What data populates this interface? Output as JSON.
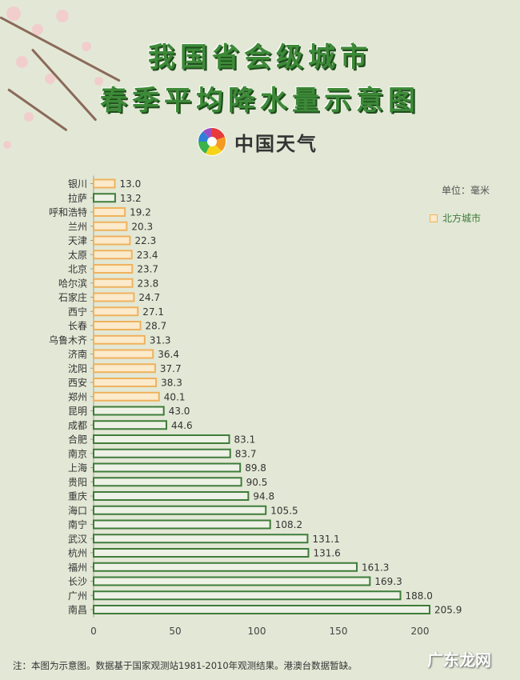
{
  "header": {
    "title_line1": "我国省会级城市",
    "title_line2": "春季平均降水量示意图",
    "brand": "中国天气",
    "brand_logo_icon": "pinwheel-logo-icon"
  },
  "note": "注：本图为示意图。数据基于国家观测站1981-2010年观测结果。港澳台数据暂缺。",
  "watermark": "广东龙网",
  "colors": {
    "background": "#e3e8d6",
    "north_stroke": "#efb25d",
    "north_fill": "#fbeacb",
    "south_stroke": "#3f7c3a",
    "south_fill": "#eef1e6",
    "title": "#3d8a38"
  },
  "chart_data": {
    "type": "bar",
    "orientation": "horizontal",
    "unit_label": "单位：毫米",
    "legend": [
      {
        "name": "北方城市",
        "color": "#efb25d"
      }
    ],
    "xlim": [
      0,
      210
    ],
    "xticks": [
      0,
      50,
      100,
      150,
      200
    ],
    "grid": false,
    "legend_position": "right",
    "categories": [
      "银川",
      "拉萨",
      "呼和浩特",
      "兰州",
      "天津",
      "太原",
      "北京",
      "哈尔滨",
      "石家庄",
      "西宁",
      "长春",
      "乌鲁木齐",
      "济南",
      "沈阳",
      "西安",
      "郑州",
      "昆明",
      "成都",
      "合肥",
      "南京",
      "上海",
      "贵阳",
      "重庆",
      "海口",
      "南宁",
      "武汉",
      "杭州",
      "福州",
      "长沙",
      "广州",
      "南昌"
    ],
    "values": [
      13.0,
      13.2,
      19.2,
      20.3,
      22.3,
      23.4,
      23.7,
      23.8,
      24.7,
      27.1,
      28.7,
      31.3,
      36.4,
      37.7,
      38.3,
      40.1,
      43.0,
      44.6,
      83.1,
      83.7,
      89.8,
      90.5,
      94.8,
      105.5,
      108.2,
      131.1,
      131.6,
      161.3,
      169.3,
      188.0,
      205.9
    ],
    "value_labels": [
      "13.0",
      "13.2",
      "19.2",
      "20.3",
      "22.3",
      "23.4",
      "23.7",
      "23.8",
      "24.7",
      "27.1",
      "28.7",
      "31.3",
      "36.4",
      "37.7",
      "38.3",
      "40.1",
      "43.0",
      "44.6",
      "83.1",
      "83.7",
      "89.8",
      "90.5",
      "94.8",
      "105.5",
      "108.2",
      "131.1",
      "131.6",
      "161.3",
      "169.3",
      "188.0",
      "205.9"
    ],
    "north": [
      true,
      false,
      true,
      true,
      true,
      true,
      true,
      true,
      true,
      true,
      true,
      true,
      true,
      true,
      true,
      true,
      false,
      false,
      false,
      false,
      false,
      false,
      false,
      false,
      false,
      false,
      false,
      false,
      false,
      false,
      false
    ]
  }
}
